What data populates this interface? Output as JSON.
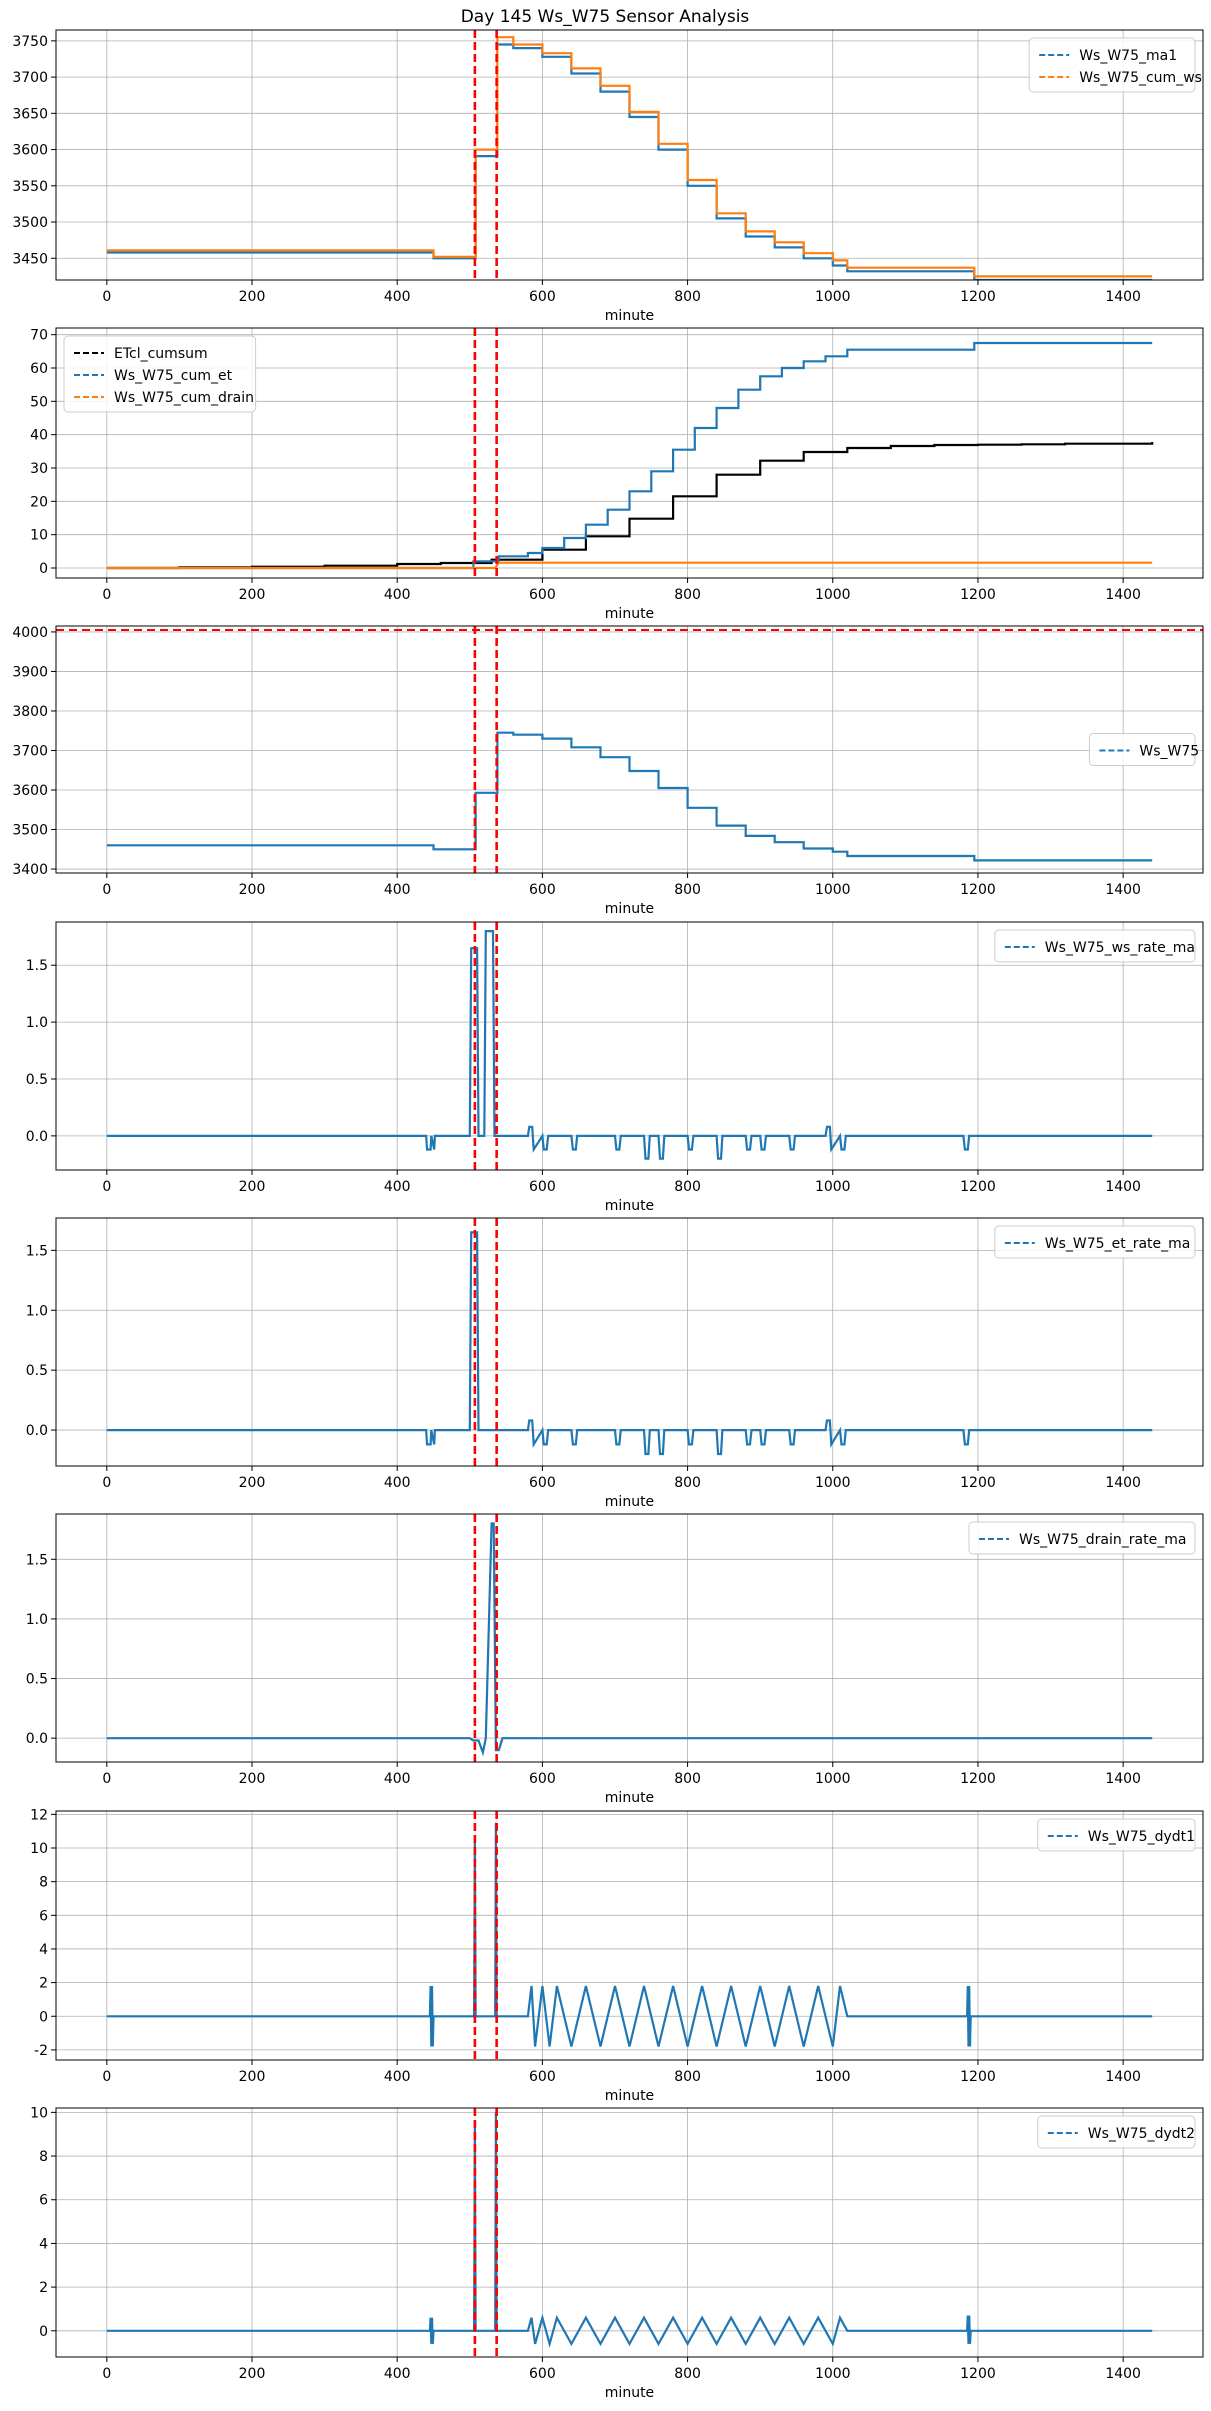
{
  "figure_title": "Day 145 Ws_W75 Sensor Analysis",
  "colors": {
    "blue": "#1f77b4",
    "orange": "#ff7f0e",
    "black": "#000000",
    "red": "#ff0000",
    "grid": "#b0b0b0"
  },
  "chart_data": [
    {
      "type": "line",
      "xlabel": "minute",
      "xlim": [
        -70,
        1510
      ],
      "ylim": [
        3420,
        3765
      ],
      "xticks": [
        0,
        200,
        400,
        600,
        800,
        1000,
        1200,
        1400
      ],
      "yticks": [
        3450,
        3500,
        3550,
        3600,
        3650,
        3700,
        3750
      ],
      "vlines": [
        507,
        537
      ],
      "hlines": [],
      "legend_loc": "top-right",
      "series": [
        {
          "name": "Ws_W75_ma1",
          "color": "blue",
          "style": "step",
          "x": [
            0,
            440,
            450,
            505,
            508,
            533,
            538,
            560,
            600,
            640,
            680,
            720,
            760,
            800,
            840,
            880,
            920,
            960,
            1000,
            1020,
            1190,
            1195,
            1440
          ],
          "y": [
            3458,
            3458,
            3450,
            3450,
            3591,
            3591,
            3745,
            3740,
            3728,
            3705,
            3680,
            3645,
            3600,
            3550,
            3505,
            3480,
            3465,
            3450,
            3440,
            3432,
            3432,
            3420,
            3420
          ]
        },
        {
          "name": "Ws_W75_cum_ws",
          "color": "orange",
          "style": "step",
          "x": [
            0,
            440,
            450,
            505,
            508,
            533,
            538,
            560,
            600,
            640,
            680,
            720,
            760,
            800,
            840,
            880,
            920,
            960,
            1000,
            1020,
            1190,
            1195,
            1440
          ],
          "y": [
            3461,
            3461,
            3452,
            3452,
            3600,
            3600,
            3755,
            3745,
            3733,
            3712,
            3688,
            3652,
            3608,
            3558,
            3512,
            3487,
            3472,
            3457,
            3447,
            3437,
            3437,
            3425,
            3425
          ]
        }
      ]
    },
    {
      "type": "line",
      "xlabel": "minute",
      "xlim": [
        -70,
        1510
      ],
      "ylim": [
        -3,
        72
      ],
      "xticks": [
        0,
        200,
        400,
        600,
        800,
        1000,
        1200,
        1400
      ],
      "yticks": [
        0,
        10,
        20,
        30,
        40,
        50,
        60,
        70
      ],
      "vlines": [
        507,
        537
      ],
      "hlines": [],
      "legend_loc": "top-left",
      "series": [
        {
          "name": "ETcl_cumsum",
          "color": "black",
          "style": "step",
          "x": [
            0,
            100,
            200,
            300,
            400,
            460,
            530,
            600,
            660,
            720,
            780,
            840,
            900,
            960,
            1020,
            1080,
            1140,
            1200,
            1260,
            1320,
            1440
          ],
          "y": [
            0,
            0.2,
            0.4,
            0.7,
            1.2,
            1.5,
            2.5,
            5.5,
            9.5,
            14.8,
            21.5,
            28,
            32.2,
            34.8,
            36,
            36.6,
            36.9,
            37,
            37.1,
            37.3,
            37.8
          ]
        },
        {
          "name": "Ws_W75_cum_et",
          "color": "blue",
          "style": "step",
          "x": [
            0,
            440,
            505,
            540,
            580,
            600,
            630,
            660,
            690,
            720,
            750,
            780,
            810,
            840,
            870,
            900,
            930,
            960,
            990,
            1020,
            1190,
            1195,
            1440
          ],
          "y": [
            0,
            0,
            2,
            3.5,
            4.5,
            6,
            9,
            13,
            17.5,
            23,
            29,
            35.5,
            42,
            48,
            53.5,
            57.5,
            60,
            62,
            63.5,
            65.5,
            65.5,
            67.5,
            67.5
          ]
        },
        {
          "name": "Ws_W75_cum_drain",
          "color": "orange",
          "style": "line",
          "x": [
            0,
            500,
            535,
            540,
            1440
          ],
          "y": [
            0,
            0,
            0,
            1.6,
            1.6
          ]
        }
      ]
    },
    {
      "type": "line",
      "xlabel": "minute",
      "xlim": [
        -70,
        1510
      ],
      "ylim": [
        3390,
        4015
      ],
      "xticks": [
        0,
        200,
        400,
        600,
        800,
        1000,
        1200,
        1400
      ],
      "yticks": [
        3400,
        3500,
        3600,
        3700,
        3800,
        3900,
        4000
      ],
      "vlines": [
        507,
        537
      ],
      "hlines": [
        4005
      ],
      "legend_loc": "center-right",
      "series": [
        {
          "name": "Ws_W75",
          "color": "blue",
          "style": "step",
          "x": [
            0,
            440,
            450,
            505,
            508,
            533,
            538,
            560,
            600,
            640,
            680,
            720,
            760,
            800,
            840,
            880,
            920,
            960,
            1000,
            1020,
            1190,
            1195,
            1440
          ],
          "y": [
            3460,
            3460,
            3450,
            3450,
            3593,
            3593,
            3745,
            3740,
            3730,
            3708,
            3683,
            3648,
            3605,
            3555,
            3510,
            3484,
            3468,
            3452,
            3444,
            3433,
            3433,
            3422,
            3422
          ]
        }
      ]
    },
    {
      "type": "line",
      "xlabel": "minute",
      "xlim": [
        -70,
        1510
      ],
      "ylim": [
        -0.3,
        1.88
      ],
      "xticks": [
        0,
        200,
        400,
        600,
        800,
        1000,
        1200,
        1400
      ],
      "yticks": [
        0.0,
        0.5,
        1.0,
        1.5
      ],
      "ytick_labels": [
        "0.0",
        "0.5",
        "1.0",
        "1.5"
      ],
      "vlines": [
        507,
        537
      ],
      "hlines": [],
      "legend_loc": "top-right",
      "series": [
        {
          "name": "Ws_W75_ws_rate_ma",
          "color": "blue",
          "style": "line",
          "x": [
            0,
            440,
            441,
            446,
            447,
            451,
            452,
            500,
            502,
            510,
            512,
            520,
            522,
            532,
            534,
            540,
            542,
            580,
            582,
            586,
            588,
            600,
            602,
            606,
            608,
            640,
            642,
            646,
            648,
            700,
            702,
            706,
            708,
            740,
            742,
            746,
            748,
            760,
            762,
            766,
            768,
            800,
            802,
            806,
            808,
            840,
            842,
            846,
            848,
            880,
            882,
            886,
            888,
            900,
            902,
            906,
            908,
            940,
            942,
            946,
            948,
            990,
            992,
            996,
            998,
            1010,
            1012,
            1016,
            1018,
            1180,
            1182,
            1186,
            1188,
            1440
          ],
          "y": [
            0,
            0,
            -0.12,
            -0.12,
            0,
            -0.12,
            0,
            0,
            1.65,
            1.65,
            0,
            0,
            1.8,
            1.8,
            0,
            0,
            0,
            0,
            0.08,
            0.08,
            -0.12,
            0,
            -0.12,
            -0.12,
            0,
            0,
            -0.12,
            -0.12,
            0,
            0,
            -0.12,
            -0.12,
            0,
            0,
            -0.2,
            -0.2,
            0,
            0,
            -0.2,
            -0.2,
            0,
            0,
            -0.12,
            -0.12,
            0,
            0,
            -0.2,
            -0.2,
            0,
            0,
            -0.12,
            -0.12,
            0,
            0,
            -0.12,
            -0.12,
            0,
            0,
            -0.12,
            -0.12,
            0,
            0,
            0.08,
            0.08,
            -0.12,
            0,
            -0.12,
            -0.12,
            0,
            0,
            -0.12,
            -0.12,
            0,
            0
          ]
        }
      ]
    },
    {
      "type": "line",
      "xlabel": "minute",
      "xlim": [
        -70,
        1510
      ],
      "ylim": [
        -0.3,
        1.77
      ],
      "xticks": [
        0,
        200,
        400,
        600,
        800,
        1000,
        1200,
        1400
      ],
      "yticks": [
        0.0,
        0.5,
        1.0,
        1.5
      ],
      "ytick_labels": [
        "0.0",
        "0.5",
        "1.0",
        "1.5"
      ],
      "vlines": [
        507,
        537
      ],
      "hlines": [],
      "legend_loc": "top-right",
      "series": [
        {
          "name": "Ws_W75_et_rate_ma",
          "color": "blue",
          "style": "line",
          "x": [
            0,
            440,
            441,
            446,
            447,
            451,
            452,
            500,
            502,
            510,
            512,
            580,
            582,
            586,
            588,
            600,
            602,
            606,
            608,
            640,
            642,
            646,
            648,
            700,
            702,
            706,
            708,
            740,
            742,
            746,
            748,
            760,
            762,
            766,
            768,
            800,
            802,
            806,
            808,
            840,
            842,
            846,
            848,
            880,
            882,
            886,
            888,
            900,
            902,
            906,
            908,
            940,
            942,
            946,
            948,
            990,
            992,
            996,
            998,
            1010,
            1012,
            1016,
            1018,
            1180,
            1182,
            1186,
            1188,
            1440
          ],
          "y": [
            0,
            0,
            -0.12,
            -0.12,
            0,
            -0.12,
            0,
            0,
            1.65,
            1.65,
            0,
            0,
            0.08,
            0.08,
            -0.12,
            0,
            -0.12,
            -0.12,
            0,
            0,
            -0.12,
            -0.12,
            0,
            0,
            -0.12,
            -0.12,
            0,
            0,
            -0.2,
            -0.2,
            0,
            0,
            -0.2,
            -0.2,
            0,
            0,
            -0.12,
            -0.12,
            0,
            0,
            -0.2,
            -0.2,
            0,
            0,
            -0.12,
            -0.12,
            0,
            0,
            -0.12,
            -0.12,
            0,
            0,
            -0.12,
            -0.12,
            0,
            0,
            0.08,
            0.08,
            -0.12,
            0,
            -0.12,
            -0.12,
            0,
            0,
            -0.12,
            -0.12,
            0,
            0
          ]
        }
      ]
    },
    {
      "type": "line",
      "xlabel": "minute",
      "xlim": [
        -70,
        1510
      ],
      "ylim": [
        -0.2,
        1.88
      ],
      "xticks": [
        0,
        200,
        400,
        600,
        800,
        1000,
        1200,
        1400
      ],
      "yticks": [
        0.0,
        0.5,
        1.0,
        1.5
      ],
      "ytick_labels": [
        "0.0",
        "0.5",
        "1.0",
        "1.5"
      ],
      "vlines": [
        507,
        537
      ],
      "hlines": [],
      "legend_loc": "top-right",
      "series": [
        {
          "name": "Ws_W75_drain_rate_ma",
          "color": "blue",
          "style": "line",
          "x": [
            0,
            500,
            505,
            512,
            518,
            522,
            530,
            533,
            536,
            540,
            545,
            548,
            1440
          ],
          "y": [
            0,
            0,
            -0.02,
            -0.02,
            -0.12,
            0,
            1.8,
            1.8,
            -0.1,
            -0.1,
            0,
            0,
            0
          ]
        }
      ]
    },
    {
      "type": "line",
      "xlabel": "minute",
      "xlim": [
        -70,
        1510
      ],
      "ylim": [
        -2.6,
        12.2
      ],
      "xticks": [
        0,
        200,
        400,
        600,
        800,
        1000,
        1200,
        1400
      ],
      "yticks": [
        -2,
        0,
        2,
        4,
        6,
        8,
        10,
        12
      ],
      "vlines": [
        507,
        537
      ],
      "hlines": [],
      "legend_loc": "top-right",
      "series": [
        {
          "name": "Ws_W75_dydt1",
          "color": "blue",
          "style": "line",
          "x": [
            0,
            445,
            446,
            447,
            448,
            449,
            450,
            506,
            507,
            508,
            535,
            536,
            537,
            580,
            585,
            590,
            600,
            610,
            620,
            640,
            660,
            680,
            700,
            720,
            740,
            760,
            780,
            800,
            820,
            840,
            860,
            880,
            900,
            920,
            940,
            960,
            980,
            1000,
            1010,
            1020,
            1185,
            1186,
            1187,
            1188,
            1189,
            1190,
            1440
          ],
          "y": [
            0,
            0,
            1.8,
            -1.8,
            1.8,
            -1.8,
            0,
            0,
            10.5,
            0,
            0,
            11.5,
            0,
            0,
            1.8,
            -1.8,
            1.8,
            -1.8,
            1.8,
            -1.8,
            1.8,
            -1.8,
            1.8,
            -1.8,
            1.8,
            -1.8,
            1.8,
            -1.8,
            1.8,
            -1.8,
            1.8,
            -1.8,
            1.8,
            -1.8,
            1.8,
            -1.8,
            1.8,
            -1.8,
            1.8,
            0,
            0,
            1.8,
            -1.8,
            1.8,
            -1.8,
            0,
            0
          ]
        }
      ]
    },
    {
      "type": "line",
      "xlabel": "minute",
      "xlim": [
        -70,
        1510
      ],
      "ylim": [
        -1.2,
        10.2
      ],
      "xticks": [
        0,
        200,
        400,
        600,
        800,
        1000,
        1200,
        1400
      ],
      "yticks": [
        0,
        2,
        4,
        6,
        8,
        10
      ],
      "vlines": [
        507,
        537
      ],
      "hlines": [],
      "legend_loc": "top-right",
      "series": [
        {
          "name": "Ws_W75_dydt2",
          "color": "blue",
          "style": "line",
          "x": [
            0,
            445,
            446,
            447,
            448,
            449,
            450,
            506,
            507,
            508,
            535,
            536,
            537,
            580,
            585,
            590,
            600,
            610,
            620,
            640,
            660,
            680,
            700,
            720,
            740,
            760,
            780,
            800,
            820,
            840,
            860,
            880,
            900,
            920,
            940,
            960,
            980,
            1000,
            1010,
            1020,
            1185,
            1186,
            1187,
            1188,
            1189,
            1190,
            1440
          ],
          "y": [
            0,
            0,
            0.6,
            -0.6,
            0.6,
            -0.6,
            0,
            0,
            9.3,
            0,
            0,
            10,
            0,
            0,
            0.6,
            -0.6,
            0.6,
            -0.6,
            0.6,
            -0.6,
            0.6,
            -0.6,
            0.6,
            -0.6,
            0.6,
            -0.6,
            0.6,
            -0.6,
            0.6,
            -0.6,
            0.6,
            -0.6,
            0.6,
            -0.6,
            0.6,
            -0.6,
            0.6,
            -0.6,
            0.6,
            0,
            0,
            0.7,
            -0.6,
            0.7,
            -0.6,
            0,
            0
          ]
        }
      ]
    }
  ]
}
